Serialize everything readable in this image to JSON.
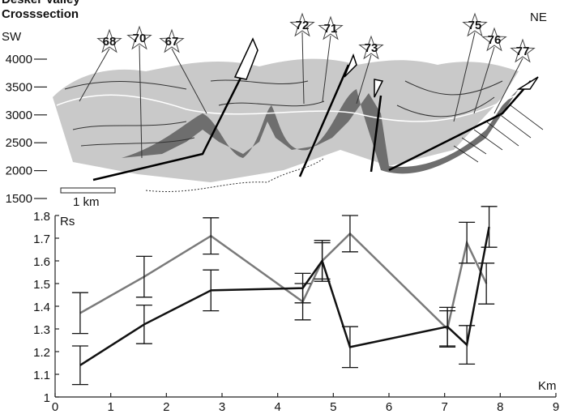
{
  "chart_data": [
    {
      "type": "line",
      "y_label": "Rs",
      "x_label": "Km",
      "xlim": [
        0,
        9
      ],
      "xticks": [
        0,
        1,
        2,
        3,
        4,
        5,
        6,
        7,
        8,
        9
      ],
      "ylim": [
        1,
        1.8
      ],
      "yticks": [
        1,
        1.1,
        1.2,
        1.3,
        1.4,
        1.5,
        1.6,
        1.7,
        1.8
      ],
      "series": [
        {
          "color": "#7a7a7a",
          "x": [
            0.45,
            1.6,
            2.8,
            4.45,
            4.8,
            5.3,
            7.05,
            7.4,
            7.75
          ],
          "values": [
            1.37,
            1.53,
            1.71,
            1.42,
            1.6,
            1.72,
            1.3,
            1.68,
            1.5
          ],
          "errors": [
            0.09,
            0.09,
            0.08,
            0.08,
            0.09,
            0.08,
            0.08,
            0.09,
            0.09
          ]
        },
        {
          "color": "#111111",
          "x": [
            0.45,
            1.6,
            2.8,
            4.45,
            4.8,
            5.3,
            7.05,
            7.4,
            7.8
          ],
          "values": [
            1.14,
            1.32,
            1.47,
            1.48,
            1.6,
            1.22,
            1.31,
            1.23,
            1.75
          ],
          "errors": [
            0.085,
            0.085,
            0.09,
            0.065,
            0.08,
            0.09,
            0.085,
            0.085,
            0.09
          ]
        }
      ]
    },
    {
      "type": "section",
      "title_lines": [
        "Desker Valley",
        "Crosssection"
      ],
      "left_label": "SW",
      "right_label": "NE",
      "ylim": [
        1500,
        4000
      ],
      "yticks": [
        1500,
        2000,
        2500,
        3000,
        3500,
        4000
      ],
      "stations": [
        "68",
        "70",
        "67",
        "72",
        "71",
        "73",
        "75",
        "76",
        "77"
      ],
      "scale_label": "1 km"
    }
  ]
}
